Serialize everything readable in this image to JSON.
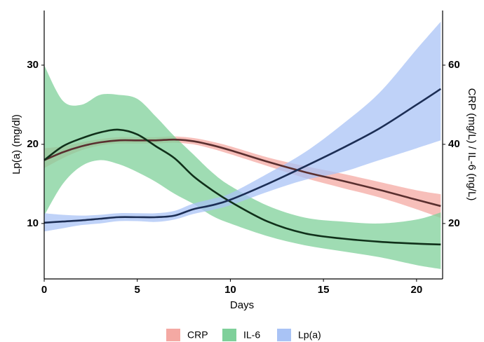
{
  "chart_data": {
    "type": "line-band",
    "x_label": "Days",
    "y_label": "Lp(a) (mg/dl)",
    "y2_label": "CRP (mg/L) / IL-6 (ng/L)",
    "x": [
      0,
      1,
      2,
      3,
      4,
      5,
      6,
      7,
      8,
      9,
      10,
      12,
      14,
      16,
      18,
      20,
      21.3
    ],
    "xlim": [
      0,
      21.4
    ],
    "xticks": [
      0,
      5,
      10,
      15,
      20
    ],
    "ylim": [
      3,
      36.9
    ],
    "yticks": [
      10,
      20,
      30
    ],
    "y2lim": [
      6,
      73.8
    ],
    "y2ticks": [
      20,
      40,
      60
    ],
    "grid": false,
    "legend": "bottom",
    "series": [
      {
        "name": "CRP",
        "color": "#f4a9a3",
        "line_color": "#5a2f2f",
        "axis": "y2",
        "values": [
          36,
          38,
          39.5,
          40.5,
          41,
          41,
          41,
          41.2,
          40.8,
          39.8,
          38.5,
          35.6,
          33,
          30.8,
          28.5,
          26,
          24.4
        ],
        "lower": [
          34,
          36.5,
          38.5,
          39.7,
          40.2,
          40.2,
          40.2,
          40.4,
          40,
          38.9,
          37.5,
          34.5,
          31.5,
          29,
          26.6,
          23.6,
          21.4
        ],
        "upper": [
          39,
          39.5,
          40.5,
          41.3,
          41.8,
          41.8,
          41.8,
          42,
          41.6,
          40.7,
          39.5,
          36.7,
          34.5,
          32.6,
          30.5,
          28.4,
          27.4
        ]
      },
      {
        "name": "IL-6",
        "color": "#7fd09a",
        "line_color": "#10301a",
        "axis": "y2",
        "values": [
          36,
          39.5,
          41.5,
          43,
          43.7,
          42.5,
          39.5,
          36.5,
          32,
          28.5,
          25.5,
          20.5,
          17.5,
          16.2,
          15.4,
          14.9,
          14.7
        ],
        "lower": [
          22,
          30,
          34.5,
          36,
          35,
          33,
          30.5,
          27.5,
          25,
          22,
          20,
          16.8,
          14.5,
          13,
          11.5,
          9.5,
          8.5
        ],
        "upper": [
          60,
          51,
          50,
          52.5,
          52.5,
          51.5,
          47,
          42,
          37.5,
          33,
          29.5,
          24.5,
          21.5,
          20.5,
          20,
          21,
          22.8
        ]
      },
      {
        "name": "Lp(a)",
        "color": "#a9c3f5",
        "line_color": "#1c2e55",
        "axis": "y",
        "values": [
          10.1,
          10.25,
          10.4,
          10.6,
          10.8,
          10.8,
          10.8,
          11,
          11.8,
          12.3,
          13,
          15,
          17.2,
          19.5,
          22,
          25,
          27
        ],
        "lower": [
          9,
          9.4,
          9.8,
          10,
          10.3,
          10.3,
          10.2,
          10.5,
          11.2,
          11.7,
          12.3,
          14,
          15.5,
          16.5,
          18,
          19.5,
          20.5
        ],
        "upper": [
          11.3,
          11.1,
          11,
          11.1,
          11.3,
          11.3,
          11.3,
          11.6,
          12.5,
          13.1,
          13.8,
          16.3,
          19,
          22.5,
          26.5,
          32,
          35.5
        ]
      }
    ]
  }
}
